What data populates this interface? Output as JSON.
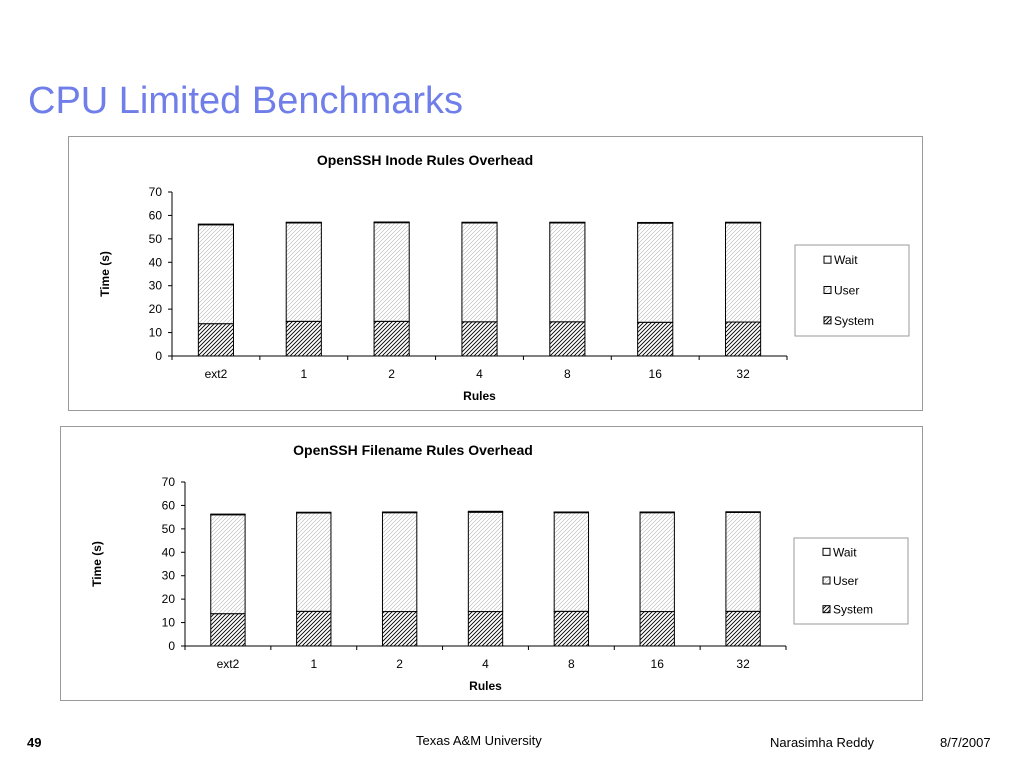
{
  "slide": {
    "title": "CPU Limited Benchmarks"
  },
  "footer": {
    "page_number": "49",
    "organization": "Texas A&M University",
    "author": "Narasimha Reddy",
    "date": "8/7/2007"
  },
  "colors": {
    "title": "#6f7ee8",
    "bar_outline": "#000000",
    "frame_border": "#9a9a9a"
  },
  "chart_data": [
    {
      "type": "bar",
      "stacked": true,
      "title": "OpenSSH Inode Rules Overhead",
      "xlabel": "Rules",
      "ylabel": "Time (s)",
      "ylim": [
        0,
        70
      ],
      "yticks": [
        0,
        10,
        20,
        30,
        40,
        50,
        60,
        70
      ],
      "categories": [
        "ext2",
        "1",
        "2",
        "4",
        "8",
        "16",
        "32"
      ],
      "series": [
        {
          "name": "System",
          "pattern": "dense-diagonal",
          "values": [
            13.8,
            14.8,
            14.8,
            14.6,
            14.6,
            14.4,
            14.5
          ]
        },
        {
          "name": "User",
          "pattern": "light-diagonal",
          "values": [
            42.2,
            42.0,
            42.1,
            42.2,
            42.2,
            42.3,
            42.3
          ]
        },
        {
          "name": "Wait",
          "pattern": "blank",
          "values": [
            0.3,
            0.3,
            0.3,
            0.3,
            0.3,
            0.3,
            0.3
          ]
        }
      ],
      "legend": {
        "position": "right",
        "order": [
          "Wait",
          "User",
          "System"
        ]
      },
      "grid": false
    },
    {
      "type": "bar",
      "stacked": true,
      "title": "OpenSSH Filename Rules Overhead",
      "xlabel": "Rules",
      "ylabel": "Time (s)",
      "ylim": [
        0,
        70
      ],
      "yticks": [
        0,
        10,
        20,
        30,
        40,
        50,
        60,
        70
      ],
      "categories": [
        "ext2",
        "1",
        "2",
        "4",
        "8",
        "16",
        "32"
      ],
      "series": [
        {
          "name": "System",
          "pattern": "dense-diagonal",
          "values": [
            13.8,
            14.8,
            14.7,
            14.7,
            14.8,
            14.7,
            14.8
          ]
        },
        {
          "name": "User",
          "pattern": "light-diagonal",
          "values": [
            42.2,
            42.0,
            42.2,
            42.4,
            42.1,
            42.2,
            42.2
          ]
        },
        {
          "name": "Wait",
          "pattern": "blank",
          "values": [
            0.3,
            0.3,
            0.3,
            0.4,
            0.3,
            0.3,
            0.3
          ]
        }
      ],
      "legend": {
        "position": "right",
        "order": [
          "Wait",
          "User",
          "System"
        ]
      },
      "grid": false
    }
  ]
}
